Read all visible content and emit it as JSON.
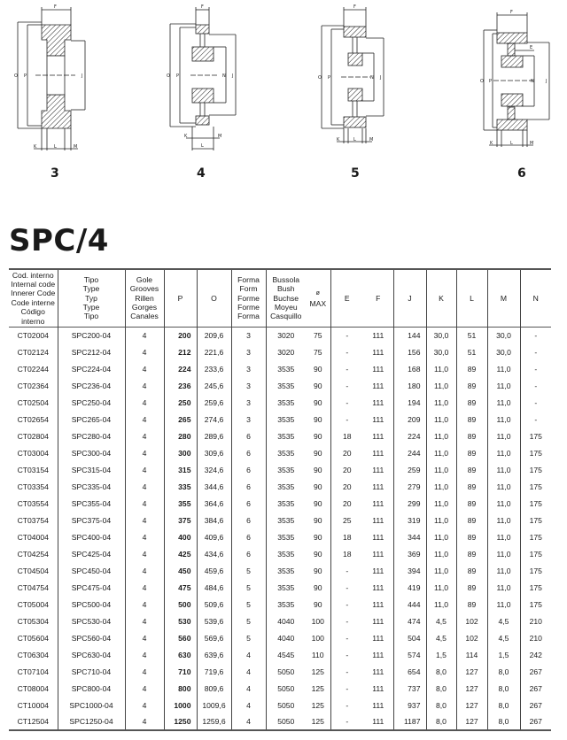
{
  "figures": [
    {
      "number": "3",
      "labels": [
        "F",
        "O",
        "P",
        "J",
        "K",
        "L",
        "M"
      ]
    },
    {
      "number": "4",
      "labels": [
        "F",
        "O",
        "P",
        "N",
        "J",
        "K",
        "M",
        "L"
      ]
    },
    {
      "number": "5",
      "labels": [
        "F",
        "O",
        "P",
        "N",
        "J",
        "K",
        "L",
        "M"
      ]
    },
    {
      "number": "6",
      "labels": [
        "F",
        "E",
        "O",
        "P",
        "N",
        "J",
        "K",
        "L",
        "M"
      ]
    }
  ],
  "title": "SPC/4",
  "table": {
    "headers": {
      "code": [
        "Cod. interno",
        "Internal code",
        "Innerer Code",
        "Code interne",
        "Código interno"
      ],
      "type": [
        "Tipo",
        "Type",
        "Typ",
        "Type",
        "Tipo"
      ],
      "grooves": [
        "Gole",
        "Grooves",
        "Rillen",
        "Gorges",
        "Canales"
      ],
      "p": "P",
      "o": "O",
      "form": [
        "Forma",
        "Form",
        "Forme",
        "Forme",
        "Forma"
      ],
      "bush": [
        "Bussola",
        "Bush",
        "Buchse",
        "Moyeu",
        "Casquillo"
      ],
      "max": [
        "ø",
        "MAX"
      ],
      "e": "E",
      "f": "F",
      "j": "J",
      "k": "K",
      "l": "L",
      "m": "M",
      "n": "N"
    },
    "rows": [
      [
        "CT02004",
        "SPC200-04",
        "4",
        "200",
        "209,6",
        "3",
        "3020",
        "75",
        "-",
        "111",
        "144",
        "30,0",
        "51",
        "30,0",
        "-"
      ],
      [
        "CT02124",
        "SPC212-04",
        "4",
        "212",
        "221,6",
        "3",
        "3020",
        "75",
        "-",
        "111",
        "156",
        "30,0",
        "51",
        "30,0",
        "-"
      ],
      [
        "CT02244",
        "SPC224-04",
        "4",
        "224",
        "233,6",
        "3",
        "3535",
        "90",
        "-",
        "111",
        "168",
        "11,0",
        "89",
        "11,0",
        "-"
      ],
      [
        "CT02364",
        "SPC236-04",
        "4",
        "236",
        "245,6",
        "3",
        "3535",
        "90",
        "-",
        "111",
        "180",
        "11,0",
        "89",
        "11,0",
        "-"
      ],
      [
        "CT02504",
        "SPC250-04",
        "4",
        "250",
        "259,6",
        "3",
        "3535",
        "90",
        "-",
        "111",
        "194",
        "11,0",
        "89",
        "11,0",
        "-"
      ],
      [
        "CT02654",
        "SPC265-04",
        "4",
        "265",
        "274,6",
        "3",
        "3535",
        "90",
        "-",
        "111",
        "209",
        "11,0",
        "89",
        "11,0",
        "-"
      ],
      [
        "CT02804",
        "SPC280-04",
        "4",
        "280",
        "289,6",
        "6",
        "3535",
        "90",
        "18",
        "111",
        "224",
        "11,0",
        "89",
        "11,0",
        "175"
      ],
      [
        "CT03004",
        "SPC300-04",
        "4",
        "300",
        "309,6",
        "6",
        "3535",
        "90",
        "20",
        "111",
        "244",
        "11,0",
        "89",
        "11,0",
        "175"
      ],
      [
        "CT03154",
        "SPC315-04",
        "4",
        "315",
        "324,6",
        "6",
        "3535",
        "90",
        "20",
        "111",
        "259",
        "11,0",
        "89",
        "11,0",
        "175"
      ],
      [
        "CT03354",
        "SPC335-04",
        "4",
        "335",
        "344,6",
        "6",
        "3535",
        "90",
        "20",
        "111",
        "279",
        "11,0",
        "89",
        "11,0",
        "175"
      ],
      [
        "CT03554",
        "SPC355-04",
        "4",
        "355",
        "364,6",
        "6",
        "3535",
        "90",
        "20",
        "111",
        "299",
        "11,0",
        "89",
        "11,0",
        "175"
      ],
      [
        "CT03754",
        "SPC375-04",
        "4",
        "375",
        "384,6",
        "6",
        "3535",
        "90",
        "25",
        "111",
        "319",
        "11,0",
        "89",
        "11,0",
        "175"
      ],
      [
        "CT04004",
        "SPC400-04",
        "4",
        "400",
        "409,6",
        "6",
        "3535",
        "90",
        "18",
        "111",
        "344",
        "11,0",
        "89",
        "11,0",
        "175"
      ],
      [
        "CT04254",
        "SPC425-04",
        "4",
        "425",
        "434,6",
        "6",
        "3535",
        "90",
        "18",
        "111",
        "369",
        "11,0",
        "89",
        "11,0",
        "175"
      ],
      [
        "CT04504",
        "SPC450-04",
        "4",
        "450",
        "459,6",
        "5",
        "3535",
        "90",
        "-",
        "111",
        "394",
        "11,0",
        "89",
        "11,0",
        "175"
      ],
      [
        "CT04754",
        "SPC475-04",
        "4",
        "475",
        "484,6",
        "5",
        "3535",
        "90",
        "-",
        "111",
        "419",
        "11,0",
        "89",
        "11,0",
        "175"
      ],
      [
        "CT05004",
        "SPC500-04",
        "4",
        "500",
        "509,6",
        "5",
        "3535",
        "90",
        "-",
        "111",
        "444",
        "11,0",
        "89",
        "11,0",
        "175"
      ],
      [
        "CT05304",
        "SPC530-04",
        "4",
        "530",
        "539,6",
        "5",
        "4040",
        "100",
        "-",
        "111",
        "474",
        "4,5",
        "102",
        "4,5",
        "210"
      ],
      [
        "CT05604",
        "SPC560-04",
        "4",
        "560",
        "569,6",
        "5",
        "4040",
        "100",
        "-",
        "111",
        "504",
        "4,5",
        "102",
        "4,5",
        "210"
      ],
      [
        "CT06304",
        "SPC630-04",
        "4",
        "630",
        "639,6",
        "4",
        "4545",
        "110",
        "-",
        "111",
        "574",
        "1,5",
        "114",
        "1,5",
        "242"
      ],
      [
        "CT07104",
        "SPC710-04",
        "4",
        "710",
        "719,6",
        "4",
        "5050",
        "125",
        "-",
        "111",
        "654",
        "8,0",
        "127",
        "8,0",
        "267"
      ],
      [
        "CT08004",
        "SPC800-04",
        "4",
        "800",
        "809,6",
        "4",
        "5050",
        "125",
        "-",
        "111",
        "737",
        "8,0",
        "127",
        "8,0",
        "267"
      ],
      [
        "CT10004",
        "SPC1000-04",
        "4",
        "1000",
        "1009,6",
        "4",
        "5050",
        "125",
        "-",
        "111",
        "937",
        "8,0",
        "127",
        "8,0",
        "267"
      ],
      [
        "CT12504",
        "SPC1250-04",
        "4",
        "1250",
        "1259,6",
        "4",
        "5050",
        "125",
        "-",
        "111",
        "1187",
        "8,0",
        "127",
        "8,0",
        "267"
      ]
    ]
  }
}
